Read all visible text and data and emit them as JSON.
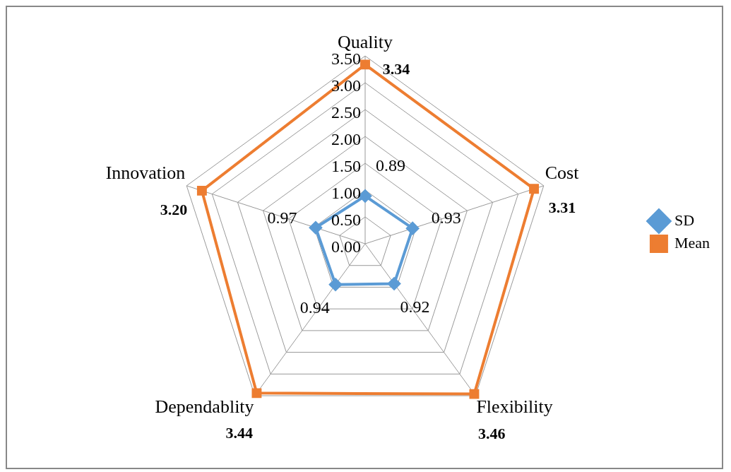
{
  "chart_data": {
    "type": "radar",
    "categories": [
      "Quality",
      "Cost",
      "Flexibility",
      "Dependablity",
      "Innovation"
    ],
    "series": [
      {
        "name": "SD",
        "color": "#5b9bd5",
        "marker": "diamond",
        "values": [
          0.89,
          0.93,
          0.92,
          0.94,
          0.97
        ],
        "value_labels": [
          "0.89",
          "0.93",
          "0.92",
          "0.94",
          "0.97"
        ]
      },
      {
        "name": "Mean",
        "color": "#ed7d31",
        "marker": "square",
        "values": [
          3.34,
          3.31,
          3.46,
          3.44,
          3.2
        ],
        "value_labels": [
          "3.34",
          "3.31",
          "3.46",
          "3.44",
          "3.20"
        ]
      }
    ],
    "ylim": [
      0,
      3.5
    ],
    "yticks": [
      {
        "value": 0,
        "label": "0.00"
      },
      {
        "value": 0.5,
        "label": "0.50"
      },
      {
        "value": 1,
        "label": "1.00"
      },
      {
        "value": 1.5,
        "label": "1.50"
      },
      {
        "value": 2,
        "label": "2.00"
      },
      {
        "value": 2.5,
        "label": "2.50"
      },
      {
        "value": 3,
        "label": "3.00"
      },
      {
        "value": 3.5,
        "label": "3.50"
      }
    ],
    "grid": true,
    "legend": "right"
  }
}
